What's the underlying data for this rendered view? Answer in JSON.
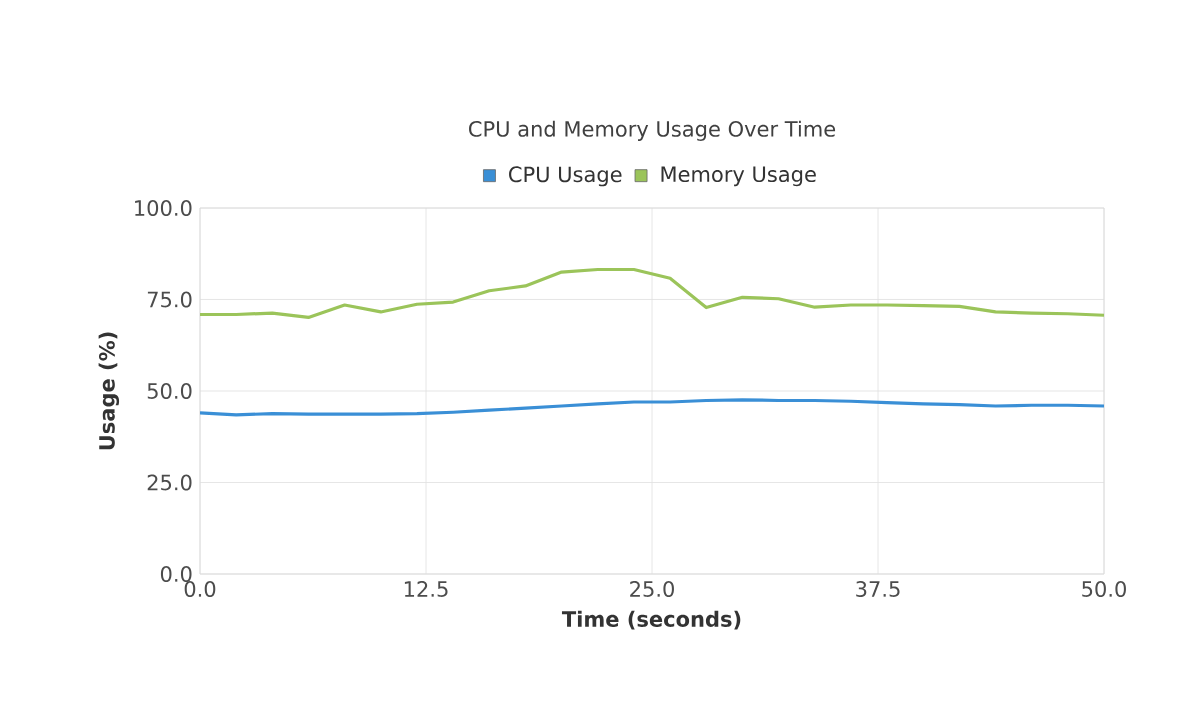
{
  "chart_data": {
    "type": "line",
    "title": "CPU and Memory Usage Over Time",
    "xlabel": "Time (seconds)",
    "ylabel": "Usage (%)",
    "x": [
      0,
      2,
      4,
      6,
      8,
      10,
      12,
      14,
      16,
      18,
      20,
      22,
      24,
      26,
      28,
      30,
      32,
      34,
      36,
      38,
      40,
      42,
      44,
      46,
      48,
      50
    ],
    "series": [
      {
        "name": "CPU Usage",
        "color": "#3a8fd6",
        "values": [
          44.0,
          43.5,
          43.8,
          43.7,
          43.7,
          43.7,
          43.8,
          44.2,
          44.8,
          45.3,
          45.9,
          46.5,
          47.0,
          47.0,
          47.4,
          47.6,
          47.4,
          47.4,
          47.2,
          46.8,
          46.5,
          46.3,
          45.9,
          46.1,
          46.1,
          45.9
        ]
      },
      {
        "name": "Memory Usage",
        "color": "#9bc45a",
        "values": [
          70.9,
          70.9,
          71.3,
          70.1,
          73.5,
          71.6,
          73.7,
          74.3,
          77.4,
          78.7,
          82.5,
          83.2,
          83.2,
          80.8,
          72.8,
          75.6,
          75.2,
          72.9,
          73.5,
          73.5,
          73.3,
          73.1,
          71.6,
          71.3,
          71.1,
          70.7
        ]
      }
    ],
    "xlim": [
      0,
      50
    ],
    "ylim": [
      0,
      100
    ],
    "xticks": [
      {
        "value": 0,
        "label": "0.0"
      },
      {
        "value": 12.5,
        "label": "12.5"
      },
      {
        "value": 25,
        "label": "25.0"
      },
      {
        "value": 37.5,
        "label": "37.5"
      },
      {
        "value": 50,
        "label": "50.0"
      }
    ],
    "yticks": [
      {
        "value": 0,
        "label": "0.0"
      },
      {
        "value": 25,
        "label": "25.0"
      },
      {
        "value": 50,
        "label": "50.0"
      },
      {
        "value": 75,
        "label": "75.0"
      },
      {
        "value": 100,
        "label": "100.0"
      }
    ],
    "grid": true,
    "legend": "top",
    "marker": "none",
    "line_style": "solid"
  }
}
